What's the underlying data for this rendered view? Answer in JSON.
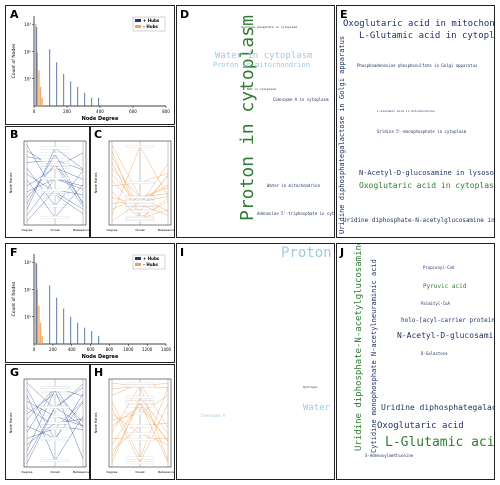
{
  "panels": {
    "A": {
      "label": "A",
      "xlabel": "Node Degree",
      "ylabel": "Count of Nodes",
      "legend": [
        "+ Hubs",
        "– Hubs"
      ],
      "xticks": [
        "0",
        "200",
        "400",
        "600",
        "800"
      ],
      "yticks": [
        "10¹",
        "10²",
        "10³"
      ]
    },
    "B": {
      "label": "B",
      "ylabel": "Node Ranks",
      "xticks": [
        "Degree",
        "Closet",
        "Betweenness"
      ]
    },
    "C": {
      "label": "C",
      "ylabel": "Node Ranks",
      "xticks": [
        "Degree",
        "Closet",
        "Betweenness"
      ]
    },
    "F": {
      "label": "F",
      "xlabel": "Node Degree",
      "ylabel": "Count of Nodes",
      "legend": [
        "+ Hubs",
        "– Hubs"
      ],
      "xticks": [
        "0",
        "200",
        "400",
        "600",
        "800",
        "1000",
        "1200",
        "1400"
      ],
      "yticks": [
        "10¹",
        "10²",
        "10³"
      ]
    },
    "G": {
      "label": "G",
      "ylabel": "Node Ranks",
      "xticks": [
        "Degree",
        "Closet",
        "Betweenness"
      ]
    },
    "H": {
      "label": "H",
      "ylabel": "Node Ranks",
      "xticks": [
        "Degree",
        "Closet",
        "Betweenness"
      ]
    },
    "D": {
      "label": "D"
    },
    "E": {
      "label": "E"
    },
    "I": {
      "label": "I"
    },
    "J": {
      "label": "J"
    }
  },
  "colors": {
    "hub_plus": "#1f3a7a",
    "hub_minus": "#f0a050",
    "blue_line": "#3a5fa0",
    "orange_line": "#f0a050",
    "cloud_green": "#2e7d32",
    "cloud_navy": "#1e3264",
    "cloud_light": "#9ecae1"
  },
  "chart_data": [
    {
      "type": "bar",
      "panel": "A",
      "series": [
        {
          "name": "+ Hubs",
          "values": [
            800,
            120,
            40,
            15,
            8,
            5,
            3,
            2,
            2,
            1
          ]
        },
        {
          "name": "– Hubs",
          "values": [
            1000,
            90,
            20,
            5,
            2,
            1,
            0,
            0,
            0,
            0
          ]
        }
      ],
      "ylim": [
        1,
        1000
      ],
      "xlim": [
        0,
        800
      ],
      "log_y": true
    },
    {
      "type": "line",
      "panel": "B",
      "categories": [
        "Degree",
        "Closet",
        "Betweenness"
      ]
    },
    {
      "type": "line",
      "panel": "C",
      "categories": [
        "Degree",
        "Closet",
        "Betweenness"
      ]
    },
    {
      "type": "bar",
      "panel": "F",
      "series": [
        {
          "name": "+ Hubs",
          "values": [
            900,
            140,
            50,
            20,
            10,
            6,
            4,
            3,
            2,
            1
          ]
        },
        {
          "name": "– Hubs",
          "values": [
            1000,
            100,
            25,
            6,
            2,
            1,
            0,
            0,
            0,
            0
          ]
        }
      ],
      "ylim": [
        1,
        1000
      ],
      "xlim": [
        0,
        1400
      ],
      "log_y": true
    },
    {
      "type": "line",
      "panel": "G",
      "categories": [
        "Degree",
        "Closet",
        "Betweenness"
      ]
    },
    {
      "type": "line",
      "panel": "H",
      "categories": [
        "Degree",
        "Closet",
        "Betweenness"
      ]
    }
  ],
  "clouds": {
    "D": [
      {
        "t": "Proton in cytoplasm",
        "c": "green",
        "s": 18,
        "v": true
      },
      {
        "t": "Water in cytoplasm",
        "c": "light",
        "s": 9
      },
      {
        "t": "Proton in mitochondrion",
        "c": "light",
        "s": 7
      },
      {
        "t": "Proton in Golgi apparatus",
        "c": "navy",
        "s": 4,
        "v": true
      },
      {
        "t": "Water in mitochondrion",
        "c": "navy",
        "s": 4
      },
      {
        "t": "Adenosine 5'-triphosphate in cytoplasm",
        "c": "navy",
        "s": 4
      },
      {
        "t": "Coenzyme A in cytoplasm",
        "c": "navy",
        "s": 4
      },
      {
        "t": "NAD in cytoplasm",
        "c": "navy",
        "s": 3
      },
      {
        "t": "Hydrogen phosphate in cytoplasm",
        "c": "navy",
        "s": 3
      }
    ],
    "E": [
      {
        "t": "Oxoglutaric acid in mitochondrion",
        "c": "navy",
        "s": 9
      },
      {
        "t": "L-Glutamic acid in cytoplasm",
        "c": "navy",
        "s": 9
      },
      {
        "t": "Phosphoadenosine phosphosulfate in Golgi apparatus",
        "c": "navy",
        "s": 4
      },
      {
        "t": "Uridine diphosphategalactose in Golgi apparatus",
        "c": "navy",
        "s": 7,
        "v": true
      },
      {
        "t": "Uridine 5'-monophosphate in cytoplasm",
        "c": "navy",
        "s": 4
      },
      {
        "t": "N-Acetyl-D-glucosamine in lysosome",
        "c": "navy",
        "s": 7
      },
      {
        "t": "Oxoglutaric acid in cytoplasm",
        "c": "green",
        "s": 8
      },
      {
        "t": "Uridine diphosphate-N-acetylglucosamine in Golgi apparatus",
        "c": "navy",
        "s": 6
      },
      {
        "t": "L-Glutamic acid in mitochondrion",
        "c": "navy",
        "s": 3
      }
    ],
    "I": [
      {
        "t": "Proton",
        "c": "light",
        "s": 14
      },
      {
        "t": "Water",
        "c": "light",
        "s": 9
      },
      {
        "t": "Coenzyme A",
        "c": "light",
        "s": 4
      },
      {
        "t": "Hydrogen",
        "c": "navy",
        "s": 3
      }
    ],
    "J": [
      {
        "t": "Uridine diphosphate-N-acetylglucosamine",
        "c": "green",
        "s": 9,
        "v": true
      },
      {
        "t": "Cytidine monophosphate N-acetylneuraminic acid",
        "c": "navy",
        "s": 7,
        "v": true
      },
      {
        "t": "Propionyl-CoA",
        "c": "navy",
        "s": 4
      },
      {
        "t": "Pyruvic acid",
        "c": "green",
        "s": 6
      },
      {
        "t": "Palmityl-CoA",
        "c": "navy",
        "s": 4
      },
      {
        "t": "holo-[acyl-carrier protein]",
        "c": "navy",
        "s": 6
      },
      {
        "t": "N-Acetyl-D-glucosamine",
        "c": "navy",
        "s": 8
      },
      {
        "t": "D-Galactose",
        "c": "navy",
        "s": 4
      },
      {
        "t": "Uridine diphosphategalactose",
        "c": "navy",
        "s": 8
      },
      {
        "t": "Oxoglutaric acid",
        "c": "navy",
        "s": 9
      },
      {
        "t": "L-Glutamic acid",
        "c": "green",
        "s": 13
      },
      {
        "t": "S-Adenosylmethionine",
        "c": "navy",
        "s": 4
      }
    ]
  }
}
